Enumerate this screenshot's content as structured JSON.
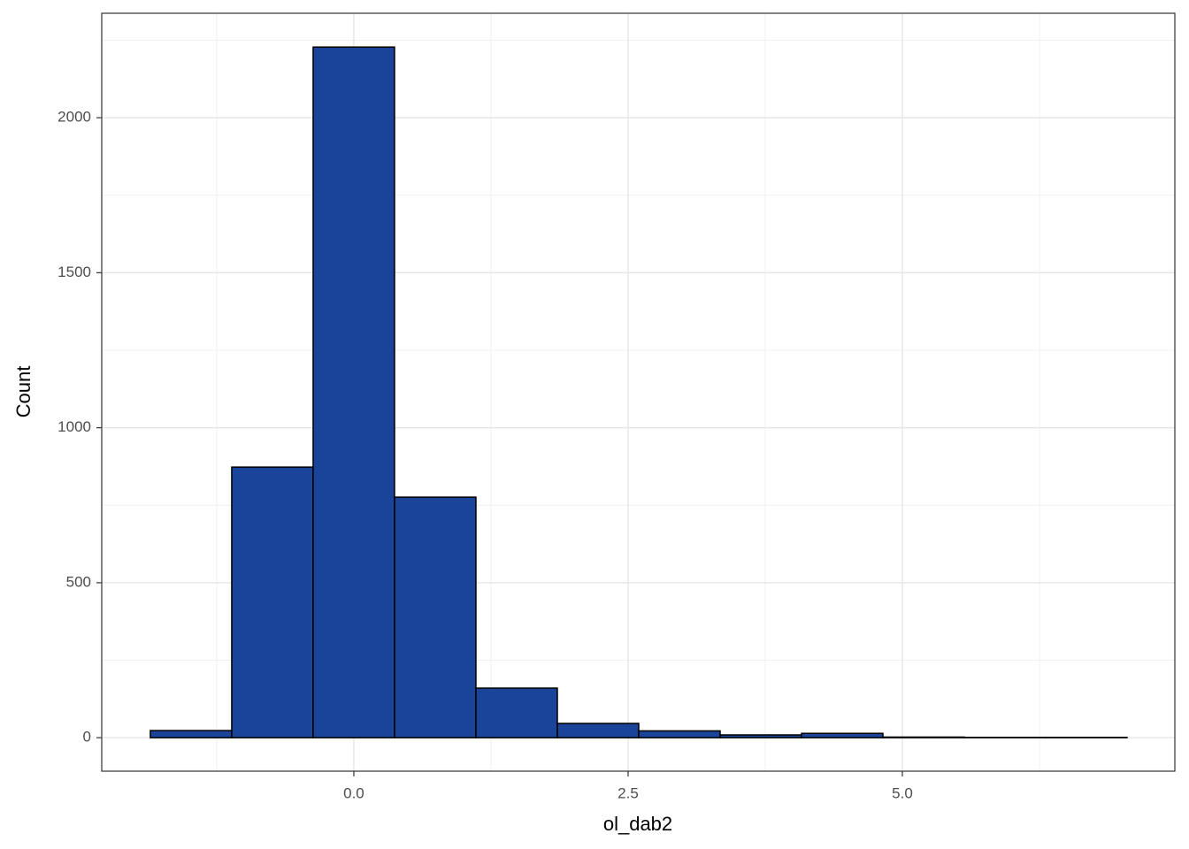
{
  "chart_data": {
    "type": "histogram",
    "x_label": "ol_dab2",
    "y_label": "Count",
    "bins": [
      -1.855,
      -1.113,
      -0.371,
      0.371,
      1.113,
      1.855,
      2.597,
      3.339,
      4.081,
      4.823,
      5.565,
      6.306,
      7.048
    ],
    "values": [
      23,
      873,
      2228,
      776,
      160,
      46,
      22,
      9,
      14,
      2,
      1,
      1
    ],
    "color": "#19449a",
    "edge_color": "#000000",
    "xlim": [
      -2.298,
      7.484
    ],
    "ylim": [
      -108,
      2337
    ],
    "xticks": [
      {
        "value": 0,
        "label": "0.0"
      },
      {
        "value": 2.5,
        "label": "2.5"
      },
      {
        "value": 5,
        "label": "5.0"
      }
    ],
    "yticks": [
      0,
      500,
      1000,
      1500,
      2000
    ],
    "x_minor_ticks": [
      -1.25,
      1.25,
      3.75,
      6.25
    ],
    "y_minor_ticks": [
      250,
      750,
      1250,
      1750,
      2250
    ],
    "grid": true
  }
}
